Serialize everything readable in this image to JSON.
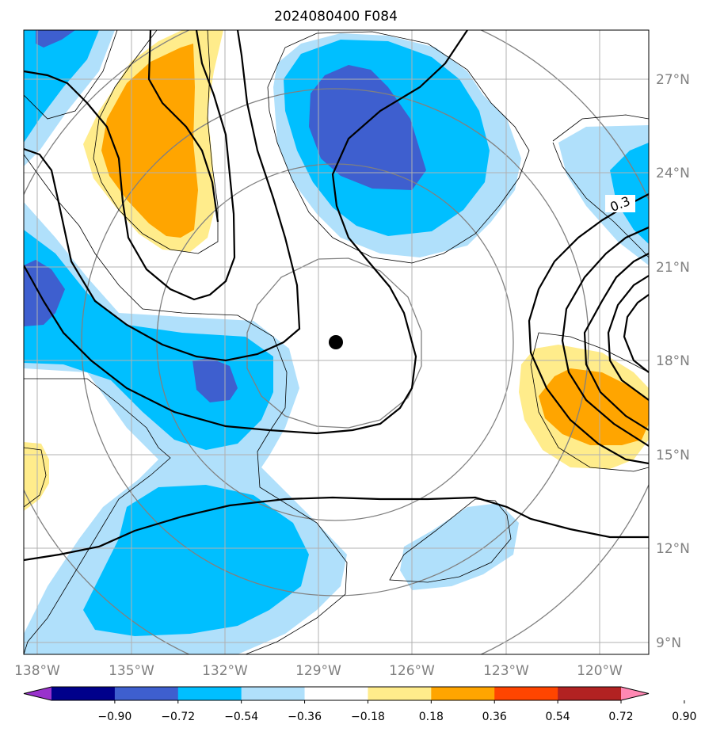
{
  "title": "2024080400 F084",
  "x_ticks": [
    "138°W",
    "135°W",
    "132°W",
    "129°W",
    "126°W",
    "123°W",
    "120°W"
  ],
  "y_ticks": [
    "27°N",
    "24°N",
    "21°N",
    "18°N",
    "15°N",
    "12°N",
    "9°N"
  ],
  "contour_label": "0.3",
  "colorbar": {
    "labels": [
      "−0.90",
      "−0.72",
      "−0.54",
      "−0.36",
      "−0.18",
      "0.18",
      "0.36",
      "0.54",
      "0.72",
      "0.90"
    ],
    "colors": [
      "#9932cc",
      "#00008b",
      "#3e5fcf",
      "#00bfff",
      "#b0e0fb",
      "#ffffff",
      "#ffec8b",
      "#ffa500",
      "#ff4500",
      "#b22222",
      "#ff88b3"
    ]
  },
  "fill_colors": {
    "light_blue": "#b0e0fb",
    "blue": "#00bfff",
    "dark_blue": "#3e5fcf",
    "yellow": "#ffec8b",
    "orange": "#ffa500"
  },
  "center_marker": {
    "lon": -128.5,
    "lat": 18.5
  }
}
